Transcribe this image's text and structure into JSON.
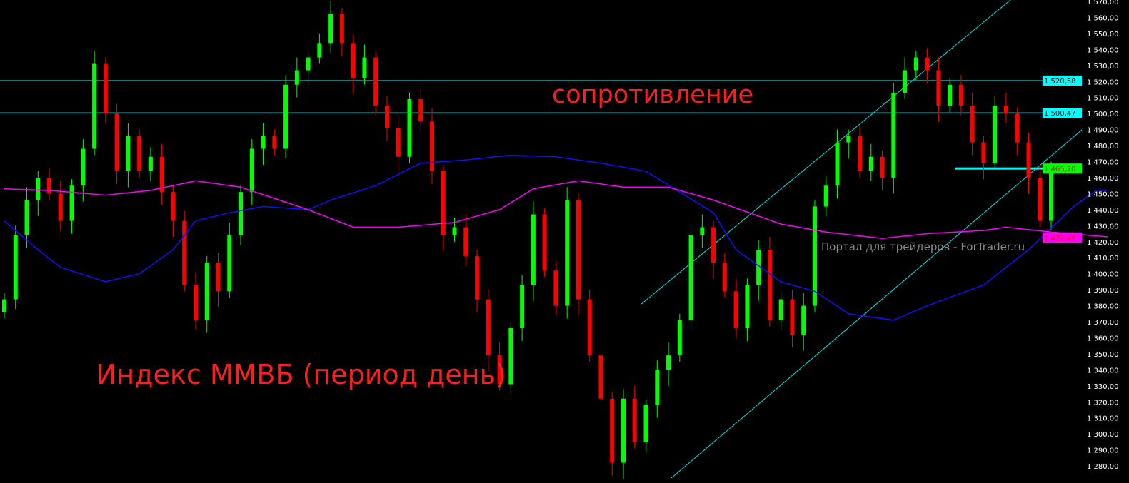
{
  "chart_data": {
    "type": "candlestick",
    "title": "",
    "ylim": [
      1276,
      1572
    ],
    "grid": false,
    "y_ticks": [
      1570,
      1560,
      1550,
      1540,
      1530,
      1520,
      1510,
      1500,
      1490,
      1480,
      1470,
      1460,
      1450,
      1440,
      1430,
      1420,
      1410,
      1400,
      1390,
      1380,
      1370,
      1360,
      1350,
      1340,
      1330,
      1320,
      1310,
      1300,
      1290,
      1280
    ],
    "y_tick_labels": [
      "1 570,00",
      "1 560,00",
      "1 550,00",
      "1 540,00",
      "1 530,00",
      "1 520,00",
      "1 510,00",
      "1 500,00",
      "1 490,00",
      "1 480,00",
      "1 470,00",
      "1 460,00",
      "1 450,00",
      "1 440,00",
      "1 430,00",
      "1 420,00",
      "1 410,00",
      "1 400,00",
      "1 390,00",
      "1 380,00",
      "1 370,00",
      "1 360,00",
      "1 350,00",
      "1 340,00",
      "1 330,00",
      "1 320,00",
      "1 310,00",
      "1 300,00",
      "1 290,00",
      "1 280,00"
    ],
    "closes": [
      1384,
      1424,
      1446,
      1460,
      1450,
      1433,
      1455,
      1478,
      1531,
      1500,
      1464,
      1486,
      1464,
      1473,
      1451,
      1433,
      1393,
      1371,
      1407,
      1389,
      1424,
      1451,
      1478,
      1486,
      1478,
      1518,
      1527,
      1535,
      1544,
      1562,
      1544,
      1522,
      1535,
      1505,
      1491,
      1473,
      1509,
      1495,
      1464,
      1424,
      1429,
      1411,
      1384,
      1349,
      1331,
      1366,
      1393,
      1437,
      1402,
      1380,
      1446,
      1384,
      1349,
      1322,
      1282,
      1322,
      1295,
      1318,
      1340,
      1349,
      1371,
      1424,
      1429,
      1407,
      1389,
      1366,
      1393,
      1415,
      1371,
      1384,
      1362,
      1380,
      1442,
      1455,
      1482,
      1486,
      1464,
      1473,
      1460,
      1513,
      1527,
      1535,
      1527,
      1505,
      1518,
      1505,
      1482,
      1469,
      1505,
      1500,
      1482,
      1460,
      1433,
      1466
    ],
    "series": [
      {
        "color": "#1010ff",
        "points": [
          [
            0,
            1433
          ],
          [
            3,
            1415
          ],
          [
            5,
            1404
          ],
          [
            9,
            1395
          ],
          [
            12,
            1400
          ],
          [
            15,
            1415
          ],
          [
            17,
            1433
          ],
          [
            20,
            1438
          ],
          [
            23,
            1442
          ],
          [
            27,
            1440
          ],
          [
            29,
            1446
          ],
          [
            33,
            1455
          ],
          [
            37,
            1469
          ],
          [
            41,
            1471
          ],
          [
            45,
            1474
          ],
          [
            49,
            1473
          ],
          [
            53,
            1469
          ],
          [
            57,
            1464
          ],
          [
            60,
            1451
          ],
          [
            63,
            1438
          ],
          [
            65,
            1415
          ],
          [
            69,
            1395
          ],
          [
            72,
            1389
          ],
          [
            75,
            1375
          ],
          [
            79,
            1371
          ],
          [
            82,
            1380
          ],
          [
            87,
            1393
          ],
          [
            91,
            1415
          ],
          [
            95,
            1442
          ],
          [
            97,
            1452
          ],
          [
            98,
            1452
          ]
        ]
      },
      {
        "color": "#ff00ff",
        "points": [
          [
            0,
            1453
          ],
          [
            4,
            1452
          ],
          [
            9,
            1449
          ],
          [
            13,
            1452
          ],
          [
            17,
            1458
          ],
          [
            21,
            1454
          ],
          [
            27,
            1440
          ],
          [
            31,
            1429
          ],
          [
            35,
            1429
          ],
          [
            40,
            1432
          ],
          [
            44,
            1440
          ],
          [
            47,
            1453
          ],
          [
            51,
            1458
          ],
          [
            55,
            1454
          ],
          [
            59,
            1454
          ],
          [
            63,
            1446
          ],
          [
            69,
            1431
          ],
          [
            73,
            1426
          ],
          [
            78,
            1422
          ],
          [
            82,
            1425
          ],
          [
            87,
            1427
          ],
          [
            89,
            1429
          ],
          [
            93,
            1426
          ],
          [
            98,
            1423
          ]
        ]
      }
    ],
    "levels": [
      {
        "value": 1520.58,
        "label": "1 520,58",
        "color": "#00ffff",
        "text_color": "#000000"
      },
      {
        "value": 1500.47,
        "label": "1 500,47",
        "color": "#00ffff",
        "text_color": "#000000"
      },
      {
        "value": 1465.7,
        "label": "1 465,70",
        "color": "#00ff00",
        "text_color": "#ff0000"
      },
      {
        "value": 1422.46,
        "label": "1 422,46",
        "color": "#ff00ff",
        "text_color": "#ff0000"
      }
    ],
    "colors": {
      "bull": "#00ff00",
      "bear": "#ff0000",
      "trendline": "#00e5e5",
      "background": "#000000"
    }
  },
  "annotations": {
    "resistance": "сопротивление",
    "title": "Индекс ММВБ (период день)",
    "watermark": "Портал для трейдеров - ForTrader.ru"
  }
}
